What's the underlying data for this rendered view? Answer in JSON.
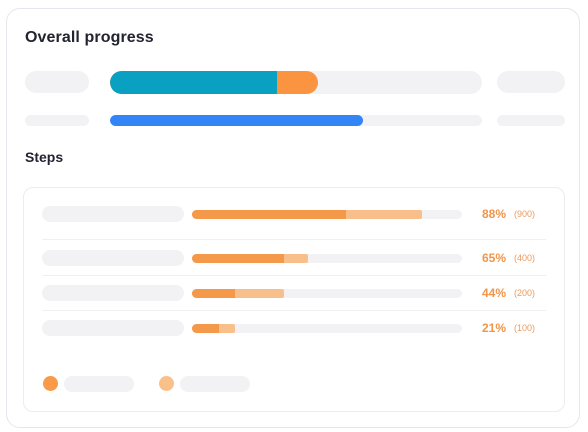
{
  "overall": {
    "title": "Overall progress",
    "primary_bar": {
      "segment1_fraction": 0.45,
      "segment2_fraction": 0.56,
      "segment1_color": "#0aa0c2",
      "segment2_color": "#fb9441"
    },
    "secondary_bar": {
      "fraction": 0.68,
      "color": "#3385f5"
    }
  },
  "steps": {
    "title": "Steps",
    "items": [
      {
        "percent_label": "88%",
        "count_label": "(900)",
        "primary_fraction": 0.57,
        "secondary_fraction": 0.85
      },
      {
        "percent_label": "65%",
        "count_label": "(400)",
        "primary_fraction": 0.34,
        "secondary_fraction": 0.43
      },
      {
        "percent_label": "44%",
        "count_label": "(200)",
        "primary_fraction": 0.16,
        "secondary_fraction": 0.34
      },
      {
        "percent_label": "21%",
        "count_label": "(100)",
        "primary_fraction": 0.1,
        "secondary_fraction": 0.16
      }
    ],
    "colors": {
      "primary": "#f4994a",
      "secondary": "#f8bf8a",
      "percent_text": "#f0954a"
    }
  },
  "legend": [
    {
      "color": "#f99a48"
    },
    {
      "color": "#fbbf89"
    }
  ]
}
